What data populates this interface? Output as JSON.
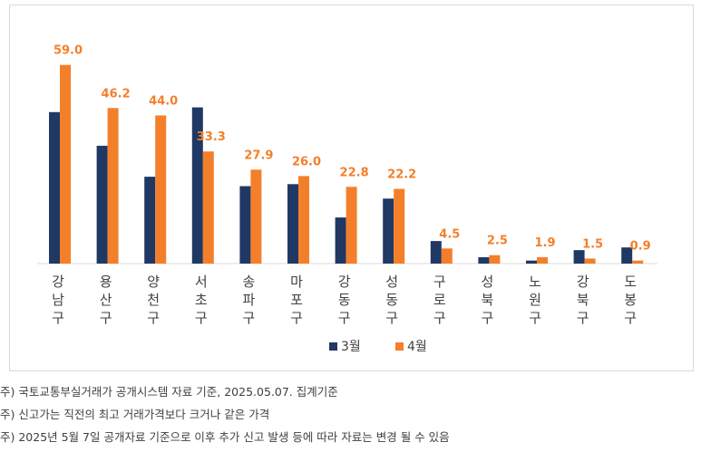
{
  "chart_data": {
    "type": "bar",
    "categories": [
      "강남구",
      "용산구",
      "양천구",
      "서초구",
      "송파구",
      "마포구",
      "강동구",
      "성동구",
      "구로구",
      "성북구",
      "노원구",
      "강북구",
      "도봉구"
    ],
    "series": [
      {
        "name": "3월",
        "color": "#203864",
        "values": [
          45.0,
          35.0,
          25.8,
          46.4,
          23.0,
          23.6,
          13.7,
          19.3,
          6.7,
          1.9,
          0.9,
          4.0,
          4.8
        ]
      },
      {
        "name": "4월",
        "color": "#f47f2b",
        "values": [
          59.0,
          46.2,
          44.0,
          33.3,
          27.9,
          26.0,
          22.8,
          22.2,
          4.5,
          2.5,
          1.9,
          1.5,
          0.9
        ]
      }
    ],
    "data_labels": [
      "59.0",
      "46.2",
      "44.0",
      "33.3",
      "27.9",
      "26.0",
      "22.8",
      "22.2",
      "4.5",
      "2.5",
      "1.9",
      "1.5",
      "0.9"
    ],
    "label_color": "#f47f2b",
    "ylim": [
      0,
      60
    ],
    "grid": false,
    "legend_position": "bottom"
  },
  "notes": [
    "주) 국토교통부실거래가 공개시스템 자료 기준, 2025.05.07. 집계기준",
    "주) 신고가는 직전의 최고 거래가격보다 크거나 같은 가격",
    "주) 2025년 5월 7일 공개자료 기준으로 이후 추가 신고 발생 등에 따라 자료는 변경 될 수 있음"
  ]
}
